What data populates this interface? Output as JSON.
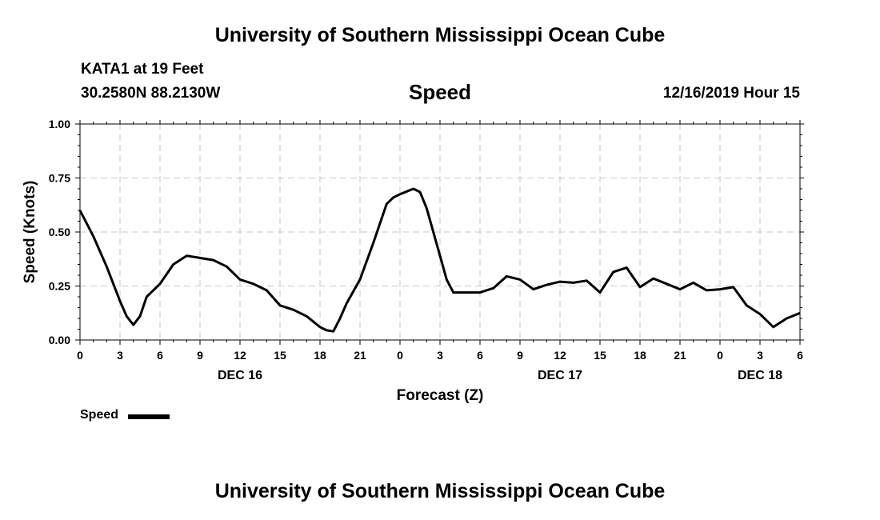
{
  "header": {
    "title": "University of Southern Mississippi Ocean Cube",
    "station": "KATA1 at 19 Feet",
    "coords": "30.2580N 88.2130W",
    "variable": "Speed",
    "run_time": "12/16/2019 Hour 15"
  },
  "footer": {
    "title": "University of Southern Mississippi Ocean Cube"
  },
  "legend": {
    "label": "Speed",
    "color": "#000000"
  },
  "chart_data": {
    "type": "line",
    "title": "Speed",
    "xlabel": "Forecast (Z)",
    "ylabel": "Speed (Knots)",
    "xlim": [
      0,
      54
    ],
    "ylim": [
      0,
      1
    ],
    "grid": true,
    "x_tick_labels": [
      "0",
      "3",
      "6",
      "9",
      "12",
      "15",
      "18",
      "21",
      "0",
      "3",
      "6",
      "9",
      "12",
      "15",
      "18",
      "21",
      "0",
      "3",
      "6"
    ],
    "y_tick_labels": [
      "0.00",
      "0.25",
      "0.50",
      "0.75",
      "1.00"
    ],
    "y_ticks": [
      0,
      0.25,
      0.5,
      0.75,
      1.0
    ],
    "day_labels": [
      {
        "label": "DEC 16",
        "hour": 12
      },
      {
        "label": "DEC 17",
        "hour": 36
      },
      {
        "label": "DEC 18",
        "hour": 51
      }
    ],
    "series": [
      {
        "name": "Speed",
        "color": "#000000",
        "x": [
          0,
          1,
          2,
          3,
          3.5,
          4,
          4.5,
          5,
          6,
          7,
          8,
          9,
          10,
          11,
          12,
          13,
          14,
          15,
          16,
          17,
          18,
          18.5,
          19,
          19.5,
          20,
          21,
          22,
          23,
          23.5,
          24,
          25,
          25.5,
          26,
          27,
          27.5,
          28,
          28.5,
          29,
          30,
          31,
          32,
          33,
          34,
          35,
          36,
          37,
          38,
          39,
          40,
          41,
          42,
          43,
          44,
          45,
          46,
          47,
          48,
          49,
          50,
          51,
          52,
          53,
          54
        ],
        "values": [
          0.6,
          0.48,
          0.34,
          0.18,
          0.11,
          0.07,
          0.11,
          0.2,
          0.26,
          0.35,
          0.39,
          0.38,
          0.37,
          0.34,
          0.28,
          0.26,
          0.23,
          0.16,
          0.14,
          0.11,
          0.06,
          0.045,
          0.04,
          0.1,
          0.17,
          0.28,
          0.45,
          0.63,
          0.66,
          0.675,
          0.7,
          0.685,
          0.61,
          0.39,
          0.28,
          0.22,
          0.22,
          0.22,
          0.22,
          0.24,
          0.295,
          0.28,
          0.235,
          0.255,
          0.27,
          0.265,
          0.275,
          0.22,
          0.315,
          0.335,
          0.245,
          0.285,
          0.26,
          0.235,
          0.265,
          0.23,
          0.235,
          0.245,
          0.16,
          0.12,
          0.06,
          0.1,
          0.125
        ]
      }
    ]
  }
}
